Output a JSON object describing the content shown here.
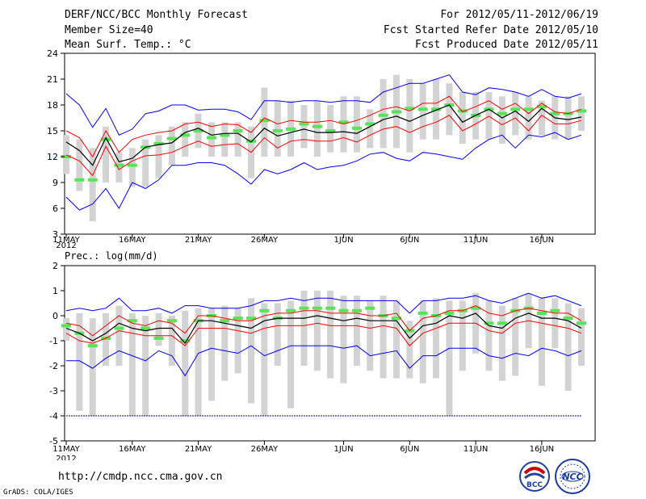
{
  "header": {
    "title": "DERF/NCC/BCC Monthly Forecast",
    "member_size": "Member Size=40",
    "variable": "Mean Surf. Temp.: °C",
    "period": "For 2012/05/11-2012/06/19",
    "refer_date": "Fcst Started Refer Date 2012/05/10",
    "produced_date": "Fcst Produced Date 2012/05/11"
  },
  "footer": {
    "url": "http://cmdp.ncc.cma.gov.cn",
    "credit": "GrADS: COLA/IGES",
    "logo1_text": "BCC",
    "logo2_text": "NCC"
  },
  "colors": {
    "envelope": "#0000ff",
    "spread": "#ff0000",
    "ens_mean": "#000000",
    "bar": "#d3d3d3",
    "marker": "#55e655",
    "baseline": "#00007f"
  },
  "chart_data": [
    {
      "type": "line",
      "title": "Mean Surf. Temp.: °C",
      "x_tick_labels": [
        "11MAY",
        "16MAY",
        "21MAY",
        "26MAY",
        "1JUN",
        "6JUN",
        "11JUN",
        "16JUN"
      ],
      "x_tick_days": [
        1,
        6,
        11,
        16,
        22,
        27,
        32,
        37
      ],
      "year_label": "2012",
      "days": [
        1,
        2,
        3,
        4,
        5,
        6,
        7,
        8,
        9,
        10,
        11,
        12,
        13,
        14,
        15,
        16,
        17,
        18,
        19,
        20,
        21,
        22,
        23,
        24,
        25,
        26,
        27,
        28,
        29,
        30,
        31,
        32,
        33,
        34,
        35,
        36,
        37,
        38,
        39,
        40
      ],
      "ylim": [
        3,
        24
      ],
      "yticks": [
        3,
        6,
        9,
        12,
        15,
        18,
        21,
        24
      ],
      "series": [
        {
          "name": "max",
          "role": "envelope",
          "values": [
            19.3,
            18,
            15.4,
            17.6,
            14.5,
            15.2,
            17,
            17.3,
            18,
            18,
            17.4,
            17.5,
            17.5,
            17.2,
            16.3,
            18.5,
            18.5,
            18.3,
            18.5,
            18.5,
            18.3,
            18.5,
            18.5,
            18.3,
            19.5,
            20,
            20.5,
            20.5,
            21,
            21.5,
            19.5,
            19.2,
            20,
            19.8,
            19.5,
            19,
            19.8,
            19,
            18.8,
            19.3
          ]
        },
        {
          "name": "upper",
          "role": "spread",
          "values": [
            15,
            14.2,
            12,
            15,
            12.5,
            14,
            14.5,
            14.8,
            15,
            15.8,
            16,
            15.5,
            15.8,
            15.7,
            14.8,
            16.5,
            15.8,
            16.2,
            16,
            16,
            16.2,
            15.8,
            16.2,
            16.8,
            17.5,
            17.8,
            17.3,
            18.2,
            18.2,
            19,
            17.2,
            17.8,
            18.5,
            17.5,
            18.2,
            17,
            18.2,
            17.2,
            17,
            17.5
          ]
        },
        {
          "name": "mean",
          "role": "ens_mean",
          "values": [
            13.7,
            12.7,
            11,
            14.2,
            11.4,
            11.8,
            13.1,
            13.4,
            13.6,
            14.8,
            15.3,
            14.5,
            14.7,
            14.7,
            13.7,
            15.3,
            14.4,
            14.8,
            15.2,
            14.8,
            14.8,
            14.9,
            14.7,
            15.5,
            16.3,
            16.7,
            16.1,
            16.8,
            17.4,
            18,
            16,
            16.8,
            17.5,
            16.5,
            17.3,
            16.1,
            17.6,
            16.5,
            16.3,
            16.6
          ]
        },
        {
          "name": "lower",
          "role": "spread",
          "values": [
            12.2,
            11.5,
            9.8,
            13.2,
            10.5,
            11.5,
            12.1,
            12.2,
            12.5,
            13.2,
            13.8,
            13.2,
            13.4,
            13.5,
            12.5,
            14.2,
            13,
            13.8,
            14,
            13.8,
            13.8,
            14.2,
            13.7,
            14.5,
            15.2,
            15.5,
            14.8,
            15.5,
            16,
            16.8,
            15,
            15.8,
            16.7,
            15.7,
            16.5,
            15,
            16.8,
            15.8,
            15.8,
            16.2
          ]
        },
        {
          "name": "min",
          "role": "envelope",
          "values": [
            7.3,
            5.8,
            6.5,
            8.3,
            6,
            9,
            8.3,
            9.3,
            11,
            11,
            11.3,
            11.3,
            11,
            10,
            8.8,
            10.5,
            10,
            10.5,
            11.3,
            10.5,
            10.8,
            11,
            11.5,
            12.3,
            12.5,
            11.8,
            11.5,
            12.5,
            12.3,
            12,
            11.7,
            13,
            14,
            14.5,
            13,
            14.5,
            14.3,
            14.8,
            14,
            14.5
          ]
        },
        {
          "name": "marker",
          "role": "marker",
          "values": [
            12,
            9.3,
            9.3,
            14,
            11,
            11,
            13.1,
            13.5,
            14.1,
            14.5,
            15,
            14.2,
            14.5,
            15,
            13.8,
            16.2,
            15,
            15.2,
            15.8,
            15.5,
            15,
            16,
            15.3,
            15.8,
            16.8,
            17.2,
            17.6,
            17.5,
            17.5,
            18,
            17.3,
            16.8,
            17.5,
            17,
            17.5,
            17.5,
            17.8,
            17,
            17,
            17.3
          ]
        },
        {
          "name": "bar_top",
          "role": "bar",
          "values": [
            14.5,
            14,
            13,
            15.5,
            12.5,
            13,
            14,
            14.5,
            15.5,
            16,
            17,
            16,
            16,
            16,
            15.5,
            20,
            18.5,
            18.5,
            18,
            18.5,
            18,
            19,
            19,
            17.5,
            21,
            21.5,
            21,
            20.5,
            21,
            20.5,
            19.5,
            19.5,
            19.5,
            19,
            19.5,
            19,
            18.5,
            19,
            19,
            19
          ]
        },
        {
          "name": "bar_bottom",
          "role": "bar",
          "values": [
            10,
            8,
            4.5,
            9,
            9,
            8.5,
            8.5,
            9.5,
            11,
            12,
            13,
            12,
            12,
            12,
            9.5,
            12,
            12,
            12,
            13,
            12,
            12.5,
            12.5,
            12.5,
            13,
            13,
            13,
            12.5,
            14,
            14,
            14.5,
            13.5,
            14,
            14,
            13.5,
            14.5,
            14,
            14.5,
            14,
            14,
            15
          ]
        }
      ]
    },
    {
      "type": "line",
      "title": "Prec.: log(mm/d)",
      "x_tick_labels": [
        "11MAY",
        "16MAY",
        "21MAY",
        "26MAY",
        "1JUN",
        "6JUN",
        "11JUN",
        "16JUN"
      ],
      "x_tick_days": [
        1,
        6,
        11,
        16,
        22,
        27,
        32,
        37
      ],
      "year_label": "2012",
      "days": [
        1,
        2,
        3,
        4,
        5,
        6,
        7,
        8,
        9,
        10,
        11,
        12,
        13,
        14,
        15,
        16,
        17,
        18,
        19,
        20,
        21,
        22,
        23,
        24,
        25,
        26,
        27,
        28,
        29,
        30,
        31,
        32,
        33,
        34,
        35,
        36,
        37,
        38,
        39,
        40
      ],
      "ylim": [
        -5,
        2
      ],
      "yticks": [
        -5,
        -4,
        -3,
        -2,
        -1,
        0,
        1,
        2
      ],
      "baseline": -4,
      "series": [
        {
          "name": "max",
          "role": "envelope",
          "values": [
            0.2,
            0.3,
            0.2,
            0.3,
            0.7,
            0.2,
            0.2,
            0.3,
            0.1,
            0.4,
            0.4,
            0.3,
            0.3,
            0.3,
            0.4,
            0.6,
            0.6,
            0.7,
            0.6,
            0.7,
            0.7,
            0.6,
            0.6,
            0.6,
            0.6,
            0.6,
            0.1,
            0.6,
            0.6,
            0.7,
            0.7,
            0.8,
            0.6,
            0.5,
            0.7,
            0.9,
            0.7,
            0.8,
            0.6,
            0.4
          ]
        },
        {
          "name": "upper",
          "role": "spread",
          "values": [
            -0.3,
            -0.4,
            -0.8,
            -0.4,
            0,
            -0.3,
            -0.4,
            -0.2,
            -0.3,
            -0.7,
            0,
            0,
            -0.1,
            -0.2,
            -0.2,
            0,
            0.1,
            0.1,
            0.2,
            0.2,
            0.1,
            0.1,
            0.1,
            0,
            0,
            0.1,
            -0.6,
            -0.1,
            0,
            0.2,
            0.2,
            0.4,
            0.1,
            0,
            0.2,
            0.3,
            0.2,
            0.1,
            0.1,
            -0.2
          ]
        },
        {
          "name": "mean",
          "role": "ens_mean",
          "values": [
            -0.5,
            -0.7,
            -1,
            -0.7,
            -0.3,
            -0.5,
            -0.6,
            -0.5,
            -0.5,
            -1.1,
            -0.2,
            -0.2,
            -0.3,
            -0.4,
            -0.5,
            -0.2,
            -0.1,
            -0.1,
            -0.1,
            0,
            -0.1,
            -0.2,
            -0.1,
            -0.2,
            -0.2,
            -0.2,
            -0.9,
            -0.4,
            -0.3,
            0,
            -0.1,
            0.1,
            -0.4,
            -0.5,
            -0.1,
            0.1,
            -0.1,
            -0.1,
            -0.2,
            -0.5
          ]
        },
        {
          "name": "lower",
          "role": "spread",
          "values": [
            -0.7,
            -1,
            -1.1,
            -0.9,
            -0.6,
            -0.7,
            -0.8,
            -0.8,
            -0.8,
            -1.2,
            -0.5,
            -0.5,
            -0.5,
            -0.6,
            -0.7,
            -0.5,
            -0.4,
            -0.4,
            -0.4,
            -0.3,
            -0.4,
            -0.4,
            -0.4,
            -0.5,
            -0.4,
            -0.5,
            -1.2,
            -0.7,
            -0.5,
            -0.3,
            -0.3,
            -0.3,
            -0.6,
            -0.7,
            -0.3,
            -0.2,
            -0.3,
            -0.4,
            -0.5,
            -0.7
          ]
        },
        {
          "name": "min",
          "role": "envelope",
          "values": [
            -1.8,
            -1.8,
            -2.1,
            -1.7,
            -1.4,
            -1.6,
            -1.8,
            -1.4,
            -1.6,
            -2.4,
            -1.5,
            -1.3,
            -1.4,
            -1.5,
            -1.2,
            -1.6,
            -1.4,
            -1.2,
            -1.2,
            -1.2,
            -1.2,
            -1.3,
            -1.2,
            -1.6,
            -1.5,
            -1.4,
            -2.1,
            -1.6,
            -1.6,
            -1.3,
            -1.3,
            -1.3,
            -1.6,
            -1.7,
            -1.5,
            -1.6,
            -1.3,
            -1.4,
            -1.6,
            -1.4
          ]
        },
        {
          "name": "marker",
          "role": "marker",
          "values": [
            -0.4,
            -0.7,
            -1.2,
            -0.9,
            -0.5,
            -0.2,
            -0.5,
            -0.9,
            -0.2,
            -1,
            -0.2,
            0,
            -0.2,
            -0.1,
            -0.1,
            0.2,
            -0.1,
            0.2,
            0.3,
            0.3,
            0.3,
            0.2,
            0.2,
            0.3,
            0,
            -0.1,
            -0.6,
            0.1,
            0,
            0.1,
            0.2,
            0.3,
            -0.3,
            -0.3,
            0.2,
            0.3,
            0.1,
            0.2,
            -0.1,
            -0.3
          ]
        },
        {
          "name": "bar_top",
          "role": "bar",
          "values": [
            -0.1,
            0.1,
            -0.1,
            0.1,
            0.4,
            0.1,
            0,
            0.1,
            0,
            0.2,
            0.3,
            0.3,
            0.4,
            0.3,
            0.7,
            0.5,
            0.5,
            0.6,
            1,
            1,
            1,
            0.8,
            0.8,
            0.6,
            0.8,
            0.6,
            -0.2,
            0.6,
            0.7,
            0.6,
            0.6,
            0.9,
            0.6,
            0.4,
            0.7,
            0.9,
            0.7,
            0.7,
            0.5,
            0.3
          ]
        },
        {
          "name": "bar_bottom",
          "role": "bar",
          "values": [
            -1,
            -3.8,
            -4,
            -2,
            -2,
            -4,
            -4,
            -1.2,
            -2,
            -4,
            -4,
            -3.4,
            -2.6,
            -2.3,
            -3.5,
            -4,
            -2,
            -3.7,
            -2,
            -2.2,
            -2.5,
            -2.7,
            -2,
            -2.2,
            -2.5,
            -2.5,
            -2.5,
            -2.7,
            -2.5,
            -4,
            -2.2,
            -1.5,
            -2.2,
            -2.6,
            -2.4,
            -1.3,
            -2.8,
            -1.3,
            -3,
            -2
          ]
        }
      ]
    }
  ]
}
